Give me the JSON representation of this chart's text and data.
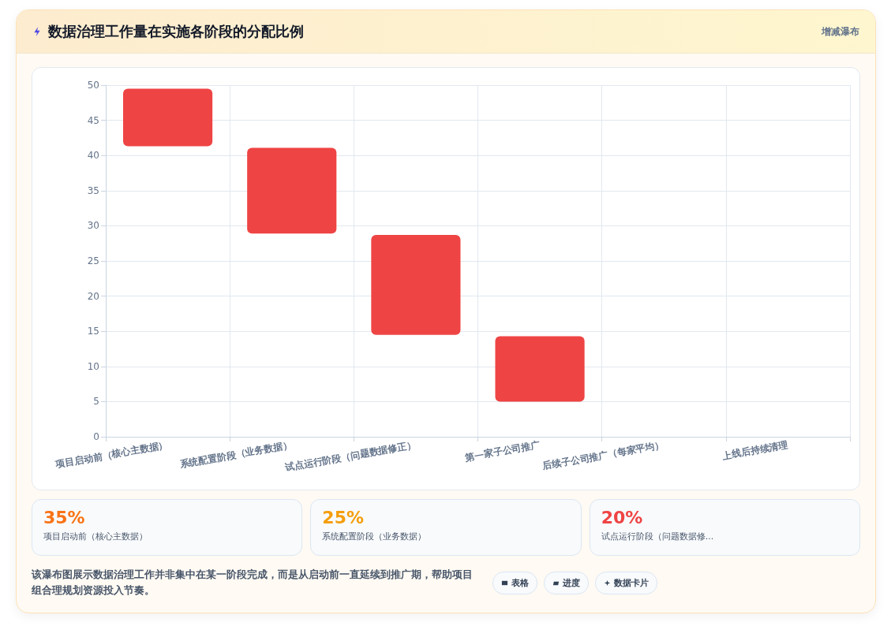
{
  "chart_data": {
    "type": "bar",
    "title": "数据治理工作量在实施各阶段的分配比例",
    "categories": [
      "项目启动前（核心主数据）",
      "系统配置阶段（业务数据）",
      "试点运行阶段（问题数据修正）",
      "第一家子公司推广",
      "后续子公司推广（每家平均）",
      "上线后持续清理"
    ],
    "values": [
      8.2,
      12.2,
      14.2,
      9.3,
      null,
      null
    ],
    "base": [
      41.3,
      28.9,
      14.5,
      5,
      null,
      null
    ],
    "color": "#ef4444",
    "ylim": [
      0,
      50
    ],
    "yticks": [
      0,
      5,
      10,
      15,
      20,
      25,
      30,
      35,
      40,
      45,
      50
    ],
    "grid": true,
    "annotations": [
      "增减瀑布",
      "35%",
      "项目启动前（核心主数据）",
      "25%",
      "系统配置阶段（业务数据）",
      "20%",
      "试点运行阶段（问题数据修...",
      "该瀑布图展示数据治理工作并非集中在某一阶段完成，而是从启动前一直延续到推广期，帮助项目组合理规划资源投入节奏。",
      "表格",
      "进度",
      "数据卡片"
    ]
  }
}
